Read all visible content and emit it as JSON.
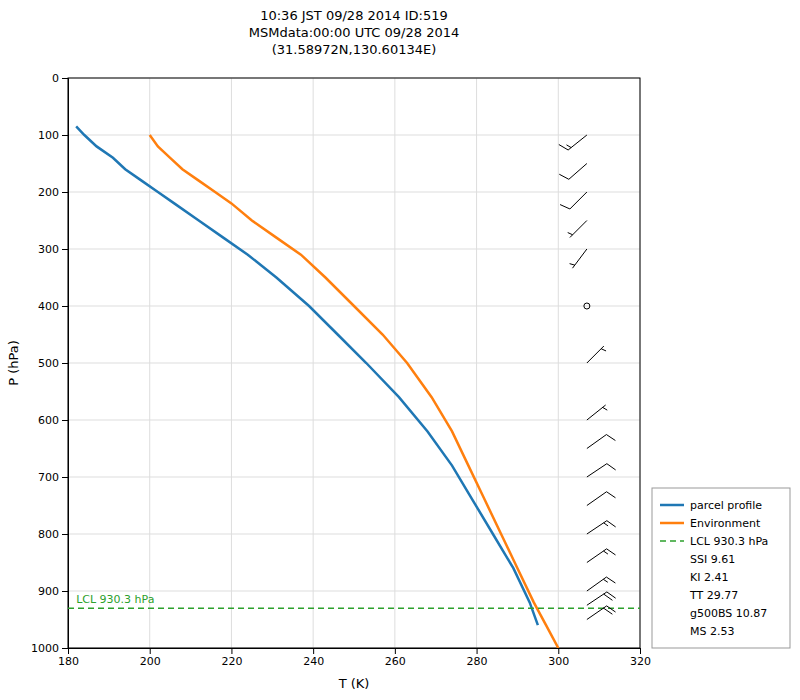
{
  "chart_data": {
    "type": "line",
    "title": "10:36 JST 09/28 2014  ID:519\nMSMdata:00:00 UTC 09/28 2014\n(31.58972N,130.60134E)",
    "x_label": "T (K)",
    "y_label": "P (hPa)",
    "xlim": [
      180,
      320
    ],
    "ylim": [
      1000,
      0
    ],
    "xticks": [
      180,
      200,
      220,
      240,
      260,
      280,
      300,
      320
    ],
    "yticks": [
      0,
      100,
      200,
      300,
      400,
      500,
      600,
      700,
      800,
      900,
      1000
    ],
    "grid": true,
    "legend": "lower right",
    "series": [
      {
        "name": "parcel profile",
        "color": "#1f77b4",
        "line_style": "solid",
        "x": [
          182,
          184,
          187,
          191,
          194,
          198,
          202,
          206,
          212,
          218,
          224,
          231,
          239,
          246,
          253,
          261,
          268,
          274,
          279,
          284,
          289,
          293,
          295
        ],
        "values": [
          85,
          100,
          120,
          140,
          160,
          180,
          200,
          220,
          250,
          280,
          310,
          350,
          400,
          450,
          500,
          560,
          620,
          680,
          740,
          800,
          860,
          920,
          960
        ]
      },
      {
        "name": "Environment",
        "color": "#ff7f0e",
        "line_style": "solid",
        "x": [
          200,
          202,
          205,
          208,
          212,
          216,
          220,
          225,
          231,
          237,
          243,
          250,
          257,
          263,
          269,
          274,
          278,
          282,
          286,
          290,
          294,
          297,
          300
        ],
        "values": [
          100,
          120,
          140,
          160,
          180,
          200,
          220,
          250,
          280,
          310,
          350,
          400,
          450,
          500,
          560,
          620,
          680,
          740,
          800,
          860,
          920,
          960,
          1000
        ]
      },
      {
        "name": "LCL 930.3 hPa",
        "color": "#2ca02c",
        "line_style": "dashed",
        "type": "hline",
        "values": [
          930.3
        ]
      }
    ],
    "legend_notes": [
      "SSI 9.61",
      "KI 2.41",
      "TT 29.77",
      "g500BS 10.87",
      "MS 2.53"
    ],
    "annotations": [
      {
        "text": "LCL 930.3 hPa",
        "x": 182,
        "y": 930.3,
        "color": "#2ca02c"
      }
    ],
    "barbs": {
      "x": 307,
      "p": [
        100,
        150,
        200,
        250,
        300,
        400,
        500,
        600,
        650,
        700,
        750,
        800,
        850,
        900,
        925,
        950
      ],
      "u": [
        10,
        8,
        6,
        5,
        3,
        1,
        -2,
        -5,
        -7,
        -9,
        -10,
        -12,
        -13,
        -14,
        -15,
        -16
      ],
      "v": [
        8,
        7,
        6,
        5,
        4,
        2,
        -2,
        -4,
        -5,
        -6,
        -7,
        -8,
        -9,
        -10,
        -10,
        -11
      ],
      "increments": {
        "half": 5,
        "full": 10,
        "flag": 50
      }
    }
  }
}
